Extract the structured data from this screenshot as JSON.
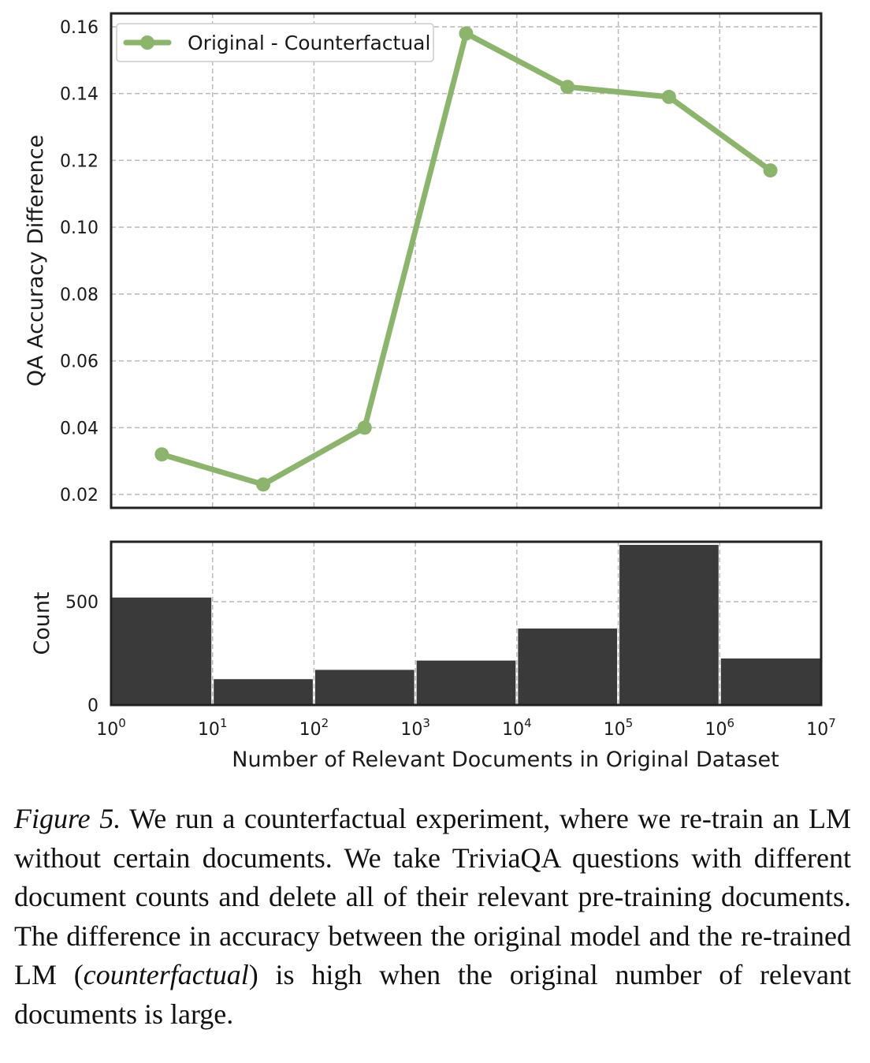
{
  "chart_data": [
    {
      "type": "line",
      "panel": "top",
      "ylabel": "QA Accuracy Difference",
      "ylim": [
        0.016,
        0.164
      ],
      "yticks": [
        0.02,
        0.04,
        0.06,
        0.08,
        0.1,
        0.12,
        0.14,
        0.16
      ],
      "ytick_labels": [
        "0.02",
        "0.04",
        "0.06",
        "0.08",
        "0.10",
        "0.12",
        "0.14",
        "0.16"
      ],
      "xscale": "log",
      "xlim": [
        1,
        10000000
      ],
      "grid": true,
      "legend": "top-left",
      "series": [
        {
          "name": "Original - Counterfactual",
          "color": "#8ab56a",
          "x": [
            3.16,
            31.6,
            316,
            3160,
            31600,
            316000,
            3160000
          ],
          "y": [
            0.032,
            0.023,
            0.04,
            0.158,
            0.142,
            0.139,
            0.117
          ]
        }
      ]
    },
    {
      "type": "bar",
      "panel": "bottom",
      "ylabel": "Count",
      "xlabel": "Number of Relevant Documents in Original Dataset",
      "ylim": [
        0,
        790
      ],
      "yticks": [
        0,
        500
      ],
      "ytick_labels": [
        "0",
        "500"
      ],
      "xscale": "log",
      "xlim": [
        1,
        10000000
      ],
      "xticks": [
        1,
        10,
        100,
        1000,
        10000,
        100000,
        1000000,
        10000000
      ],
      "xtick_labels": [
        {
          "base": "10",
          "exp": "0"
        },
        {
          "base": "10",
          "exp": "1"
        },
        {
          "base": "10",
          "exp": "2"
        },
        {
          "base": "10",
          "exp": "3"
        },
        {
          "base": "10",
          "exp": "4"
        },
        {
          "base": "10",
          "exp": "5"
        },
        {
          "base": "10",
          "exp": "6"
        },
        {
          "base": "10",
          "exp": "7"
        }
      ],
      "grid": true,
      "bar_color": "#3a3a3a",
      "bins": [
        {
          "from": 1,
          "to": 10,
          "count": 520
        },
        {
          "from": 10,
          "to": 100,
          "count": 125
        },
        {
          "from": 100,
          "to": 1000,
          "count": 170
        },
        {
          "from": 1000,
          "to": 10000,
          "count": 215
        },
        {
          "from": 10000,
          "to": 100000,
          "count": 370
        },
        {
          "from": 100000,
          "to": 1000000,
          "count": 775
        },
        {
          "from": 1000000,
          "to": 10000000,
          "count": 225
        }
      ]
    }
  ],
  "caption": {
    "label": "Figure 5.",
    "text_before": " We run a counterfactual experiment, where we re-train an LM without certain documents. We take TriviaQA questions with different document counts and delete all of their relevant pre-training documents. The difference in accuracy between the original model and the re-trained LM (",
    "emphasis": "counterfactual",
    "text_after": ") is high when the original number of relevant documents is large."
  }
}
